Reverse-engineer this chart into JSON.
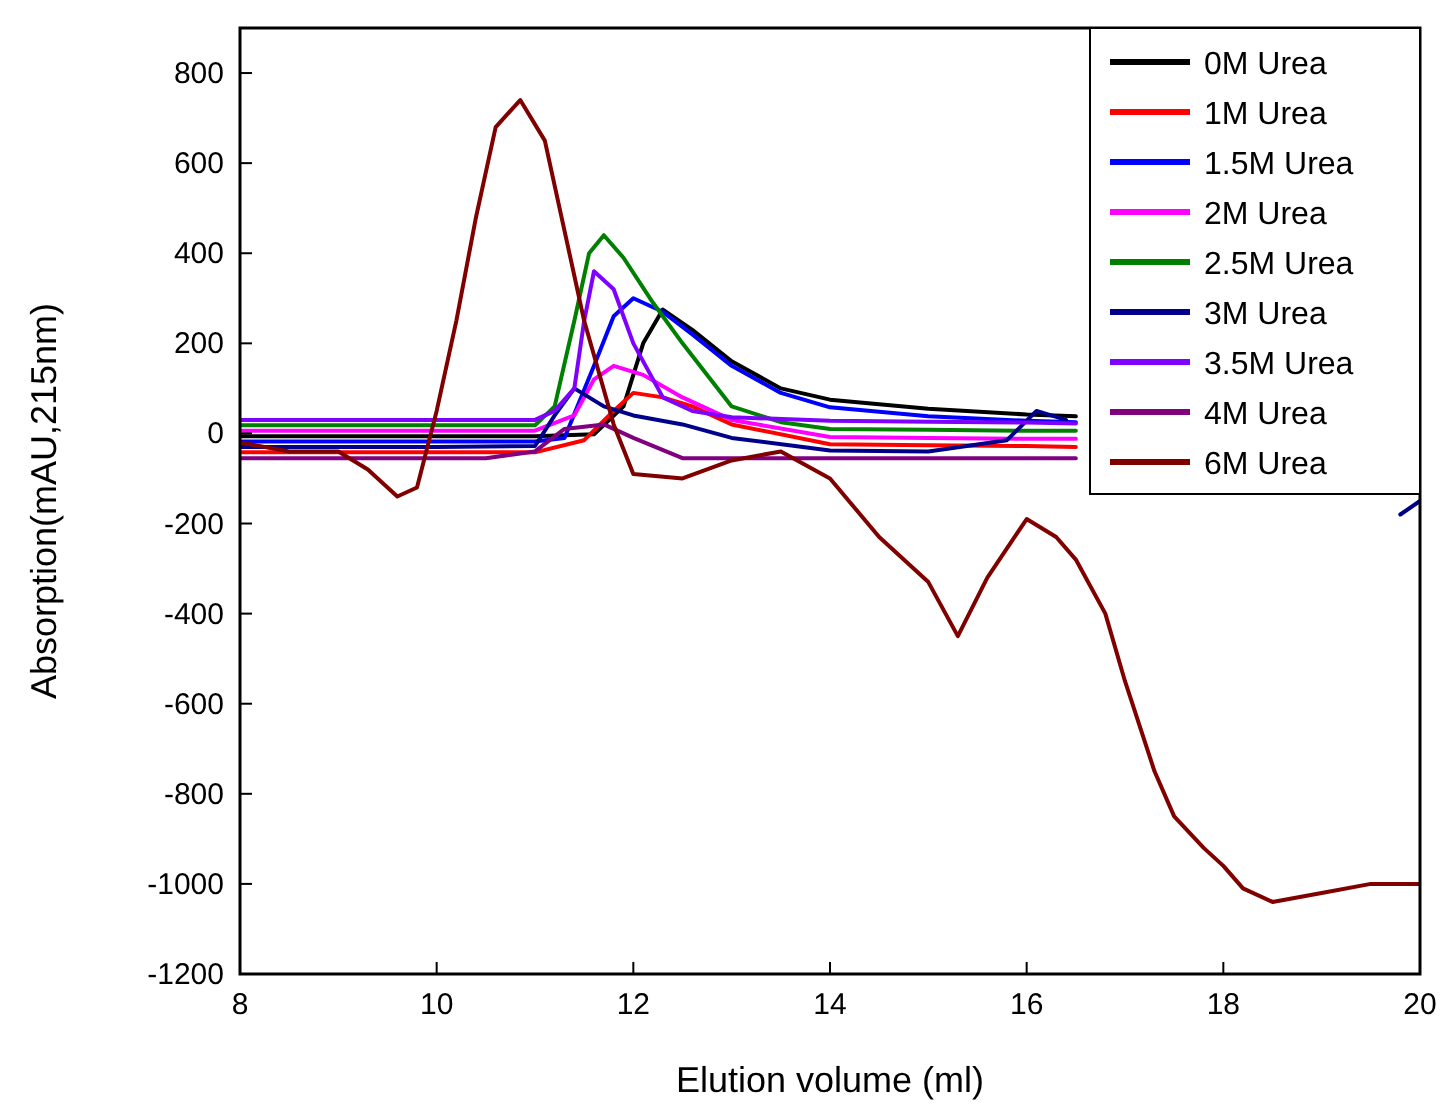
{
  "chart_data": {
    "type": "line",
    "xlabel": "Elution volume (ml)",
    "ylabel": "Absorption(mAU,215nm)",
    "xlim": [
      8,
      20
    ],
    "xticks": [
      8,
      10,
      12,
      14,
      16,
      18,
      20
    ],
    "ylim": [
      -1200,
      900
    ],
    "yticks": [
      -1200,
      -1000,
      -800,
      -600,
      -400,
      -200,
      0,
      200,
      400,
      600,
      800
    ],
    "grid": false,
    "legend": "top right",
    "line_style": "solid",
    "marker": "none",
    "series": [
      {
        "name": "0M Urea",
        "color": "#000000",
        "x": [
          8,
          9,
          10,
          11,
          11.6,
          11.9,
          12.1,
          12.3,
          12.6,
          13,
          13.5,
          14,
          15,
          16,
          16.5
        ],
        "values": [
          -6,
          -6,
          -6,
          -6,
          -2,
          60,
          200,
          275,
          230,
          160,
          100,
          75,
          55,
          42,
          38
        ]
      },
      {
        "name": "1M Urea",
        "color": "#ff0000",
        "x": [
          8,
          9,
          10,
          11,
          11.5,
          11.8,
          12,
          12.3,
          12.6,
          13,
          14,
          15,
          16,
          16.5
        ],
        "values": [
          -42,
          -42,
          -42,
          -42,
          -15,
          50,
          90,
          80,
          60,
          20,
          -24,
          -26,
          -28,
          -30
        ]
      },
      {
        "name": "1.5M Urea",
        "color": "#0000ff",
        "x": [
          8,
          9,
          10,
          11,
          11.3,
          11.6,
          11.8,
          12,
          12.3,
          12.6,
          13,
          13.5,
          14,
          15,
          16,
          16.5
        ],
        "values": [
          -18,
          -18,
          -18,
          -18,
          -10,
          150,
          260,
          300,
          270,
          220,
          150,
          90,
          58,
          38,
          28,
          25
        ]
      },
      {
        "name": "2M Urea",
        "color": "#ff00ff",
        "x": [
          8,
          9,
          10,
          11,
          11.4,
          11.6,
          11.8,
          12.1,
          12.5,
          13,
          14,
          15,
          16,
          16.5
        ],
        "values": [
          6,
          6,
          6,
          6,
          40,
          120,
          150,
          130,
          80,
          30,
          -8,
          -10,
          -12,
          -12
        ]
      },
      {
        "name": "2.5M Urea",
        "color": "#008000",
        "x": [
          8,
          9,
          10,
          11,
          11.2,
          11.4,
          11.55,
          11.7,
          11.9,
          12.2,
          12.5,
          13,
          13.5,
          14,
          15,
          16,
          16.5
        ],
        "values": [
          18,
          18,
          18,
          18,
          60,
          250,
          400,
          440,
          390,
          290,
          200,
          60,
          25,
          10,
          8,
          6,
          6
        ]
      },
      {
        "name": "3M Urea",
        "color": "#00008b",
        "x": [
          8,
          9,
          10,
          11,
          11.2,
          11.4,
          11.7,
          12,
          12.5,
          13,
          14,
          15,
          15.8,
          16.1,
          16.4,
          16.7,
          17,
          18,
          19,
          19.5,
          19.8,
          20
        ],
        "values": [
          -30,
          -30,
          -30,
          -28,
          40,
          100,
          60,
          40,
          20,
          -10,
          -38,
          -40,
          -15,
          50,
          30,
          null,
          null,
          null,
          null,
          null,
          -180,
          -150
        ]
      },
      {
        "name": "3.5M Urea",
        "color": "#8000ff",
        "x": [
          8,
          9,
          10,
          11,
          11.2,
          11.4,
          11.5,
          11.6,
          11.8,
          12,
          12.3,
          12.6,
          13,
          14,
          15,
          16,
          16.5
        ],
        "values": [
          30,
          30,
          30,
          30,
          50,
          100,
          250,
          360,
          320,
          200,
          80,
          50,
          36,
          28,
          26,
          24,
          22
        ]
      },
      {
        "name": "4M Urea",
        "color": "#800080",
        "x": [
          8,
          9,
          10,
          10.5,
          11,
          11.3,
          11.7,
          12,
          12.5,
          13,
          14,
          15,
          16,
          16.5
        ],
        "values": [
          -55,
          -55,
          -55,
          -55,
          -40,
          10,
          20,
          -10,
          -55,
          -55,
          -55,
          -55,
          -55,
          -55
        ]
      },
      {
        "name": "6M Urea",
        "color": "#800000",
        "x": [
          8,
          8.5,
          9,
          9.3,
          9.6,
          9.8,
          10,
          10.2,
          10.4,
          10.6,
          10.85,
          11.1,
          11.5,
          11.8,
          12,
          12.5,
          13,
          13.5,
          14,
          14.5,
          15,
          15.3,
          15.6,
          16,
          16.3,
          16.5,
          16.8,
          17,
          17.3,
          17.5,
          17.8,
          18,
          18.2,
          18.5,
          19,
          19.5,
          20
        ],
        "values": [
          -20,
          -40,
          -40,
          -80,
          -140,
          -120,
          50,
          250,
          480,
          680,
          740,
          650,
          250,
          20,
          -90,
          -100,
          -60,
          -40,
          -100,
          -230,
          -330,
          -450,
          -320,
          -190,
          -230,
          -280,
          -400,
          -550,
          -750,
          -850,
          -920,
          -960,
          -1010,
          -1040,
          -1020,
          -1000,
          -1000
        ]
      }
    ]
  }
}
